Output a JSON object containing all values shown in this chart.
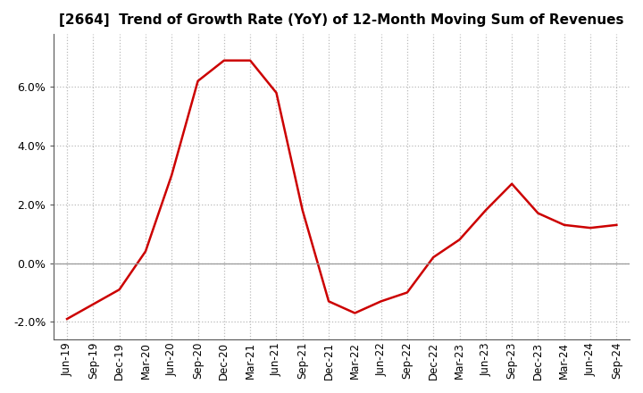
{
  "title": "[2664]  Trend of Growth Rate (YoY) of 12-Month Moving Sum of Revenues",
  "line_color": "#cc0000",
  "line_width": 1.8,
  "background_color": "#ffffff",
  "plot_bg_color": "#ffffff",
  "ylim": [
    -0.026,
    0.078
  ],
  "yticks": [
    -0.02,
    0.0,
    0.02,
    0.04,
    0.06
  ],
  "grid_color": "#bbbbbb",
  "values": [
    -0.019,
    -0.014,
    -0.009,
    0.004,
    0.03,
    0.062,
    0.069,
    0.069,
    0.058,
    0.018,
    -0.013,
    -0.017,
    -0.013,
    -0.01,
    0.002,
    0.008,
    0.018,
    0.027,
    0.017,
    0.013,
    0.012,
    0.013
  ],
  "xtick_labels": [
    "Jun-19",
    "Sep-19",
    "Dec-19",
    "Mar-20",
    "Jun-20",
    "Sep-20",
    "Dec-20",
    "Mar-21",
    "Jun-21",
    "Sep-21",
    "Dec-21",
    "Mar-22",
    "Jun-22",
    "Sep-22",
    "Dec-22",
    "Mar-23",
    "Jun-23",
    "Sep-23",
    "Dec-23",
    "Mar-24",
    "Jun-24",
    "Sep-24"
  ],
  "title_fontsize": 11,
  "tick_fontsize": 8.5,
  "ytick_fontsize": 9
}
